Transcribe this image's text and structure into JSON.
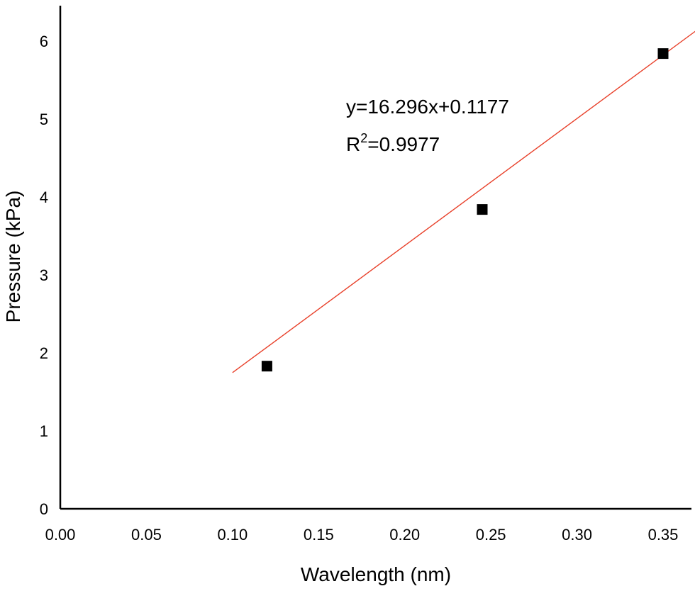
{
  "chart_data": {
    "type": "scatter",
    "title": "",
    "xlabel": "Wavelength (nm)",
    "ylabel": "Pressure (kPa)",
    "xlim": [
      0.0,
      0.375
    ],
    "ylim": [
      0,
      6.5
    ],
    "x_ticks": [
      "0.00",
      "0.05",
      "0.10",
      "0.15",
      "0.20",
      "0.25",
      "0.30",
      "0.35"
    ],
    "x_tick_values": [
      0.0,
      0.05,
      0.1,
      0.15,
      0.2,
      0.25,
      0.3,
      0.35
    ],
    "y_ticks": [
      "0",
      "1",
      "2",
      "3",
      "4",
      "5",
      "6"
    ],
    "y_tick_values": [
      0,
      1,
      2,
      3,
      4,
      5,
      6
    ],
    "grid": false,
    "series": [
      {
        "marker": "square",
        "color": "#000000",
        "points": [
          {
            "x": 0.12,
            "y": 1.83
          },
          {
            "x": 0.245,
            "y": 3.84
          },
          {
            "x": 0.35,
            "y": 5.84
          }
        ]
      }
    ],
    "fit_line": {
      "color": "#e8402a",
      "slope": 16.296,
      "intercept": 0.1177,
      "x_range": [
        0.1,
        0.375
      ]
    },
    "annotations": {
      "equation": "y=16.296x+0.1177",
      "r2_base": "R",
      "r2_sup": "2",
      "r2_value": "=0.9977"
    }
  }
}
